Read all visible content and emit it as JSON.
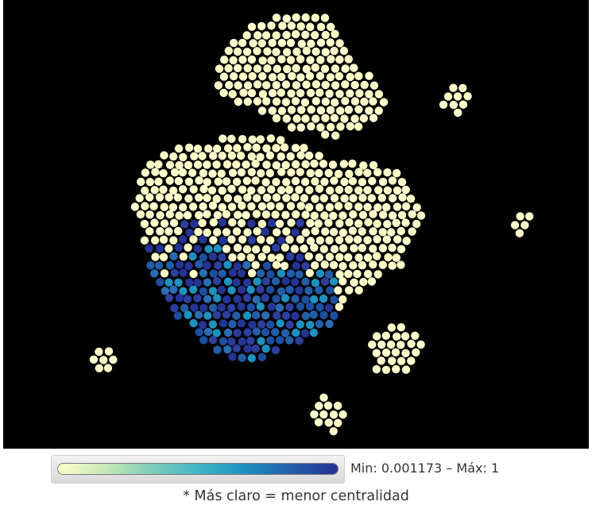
{
  "graph": {
    "background": "#000000",
    "low_centrality_color": "#ffffcc",
    "mid_centrality_color": "#41b6c4",
    "high_centrality_color": "#253494"
  },
  "legend": {
    "gradient_colors": [
      "#ffffcc",
      "#c7e9b4",
      "#7fcdbb",
      "#41b6c4",
      "#1d91c0",
      "#225ea8",
      "#253494"
    ],
    "range_text": "Min: 0.001173 – Máx: 1"
  },
  "footnote": "* Más claro = menor centralidad"
}
